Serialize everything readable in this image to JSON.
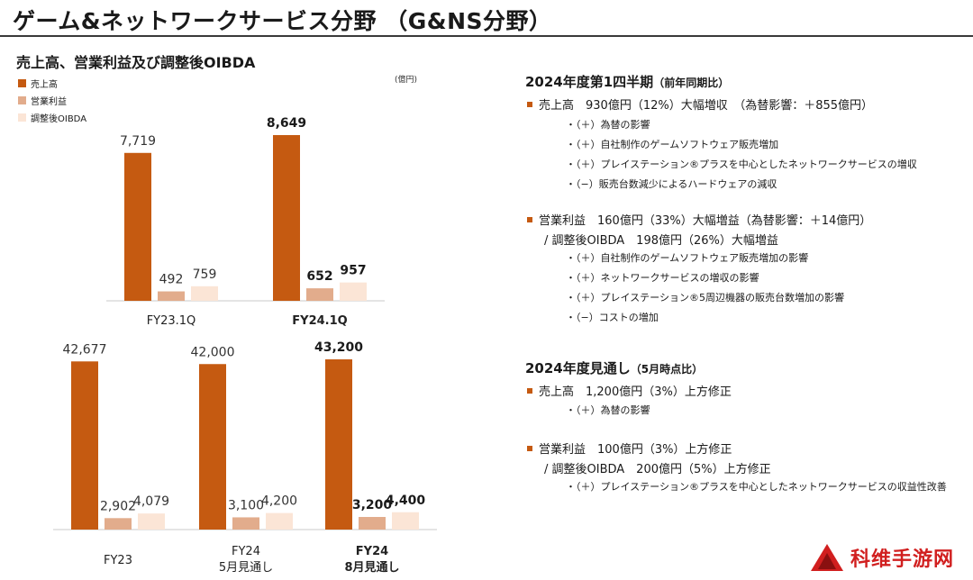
{
  "page": {
    "title": "ゲーム&ネットワークサービス分野 （G&NS分野）",
    "subtitle": "売上高、営業利益及び調整後OIBDA",
    "unit": "(億円)"
  },
  "colors": {
    "sales": "#c55a11",
    "op": "#e2ac8c",
    "oibda": "#fbe5d6",
    "accent": "#c55a11"
  },
  "legend": [
    {
      "label": "売上高",
      "color": "#c55a11"
    },
    {
      "label": "営業利益",
      "color": "#e2ac8c"
    },
    {
      "label": "調整後OIBDA",
      "color": "#fbe5d6"
    }
  ],
  "chart_data": [
    {
      "type": "bar",
      "categories": [
        "FY23.1Q",
        "FY24.1Q"
      ],
      "series": [
        {
          "name": "売上高",
          "values": [
            7719,
            8649
          ]
        },
        {
          "name": "営業利益",
          "values": [
            492,
            652
          ]
        },
        {
          "name": "調整後OIBDA",
          "values": [
            759,
            957
          ]
        }
      ],
      "value_labels": [
        [
          "7,719",
          "492",
          "759"
        ],
        [
          "8,649",
          "652",
          "957"
        ]
      ],
      "bold_category": "FY24.1Q",
      "ylim": [
        0,
        10000
      ]
    },
    {
      "type": "bar",
      "categories": [
        "FY23",
        "FY24 5月見通し",
        "FY24 8月見通し"
      ],
      "category_lines": [
        [
          "FY23"
        ],
        [
          "FY24",
          "5月見通し"
        ],
        [
          "FY24",
          "8月見通し"
        ]
      ],
      "series": [
        {
          "name": "売上高",
          "values": [
            42677,
            42000,
            43200
          ]
        },
        {
          "name": "営業利益",
          "values": [
            2902,
            3100,
            3200
          ]
        },
        {
          "name": "調整後OIBDA",
          "values": [
            4079,
            4200,
            4400
          ]
        }
      ],
      "value_labels": [
        [
          "42,677",
          "2,902",
          "4,079"
        ],
        [
          "42,000",
          "3,100",
          "4,200"
        ],
        [
          "43,200",
          "3,200",
          "4,400"
        ]
      ],
      "bold_category": "FY24 8月見通し",
      "ylim": [
        0,
        45000
      ]
    }
  ],
  "q1": {
    "heading": "2024年度第1四半期",
    "heading_note": "（前年同期比）",
    "sales_line": "売上高　930億円（12%）大幅増収　（為替影響：＋855億円）",
    "sales_items": [
      "・（＋）為替の影響",
      "・（＋）自社制作のゲームソフトウェア販売増加",
      "・（＋）プレイステーション®プラスを中心としたネットワークサービスの増収",
      "・（−）販売台数減少によるハードウェアの減収"
    ],
    "op_line": "営業利益　160億円（33%）大幅増益（為替影響：＋14億円）",
    "oibda_line": "/ 調整後OIBDA　198億円（26%）大幅増益",
    "op_items": [
      "・（＋）自社制作のゲームソフトウェア販売増加の影響",
      "・（＋）ネットワークサービスの増収の影響",
      "・（＋）プレイステーション®5周辺機器の販売台数増加の影響",
      "・（−）コストの増加"
    ]
  },
  "fy": {
    "heading": "2024年度見通し",
    "heading_note": "（5月時点比）",
    "sales_line": "売上高　1,200億円（3%）上方修正",
    "sales_items": [
      "・（＋）為替の影響"
    ],
    "op_line": "営業利益　100億円（3%）上方修正",
    "oibda_line": "/ 調整後OIBDA　200億円（5%）上方修正",
    "op_items": [
      "・（＋）プレイステーション®プラスを中心としたネットワークサービスの収益性改善"
    ]
  },
  "watermark": {
    "text": "科维手游网",
    "logo": "red-triangle-logo"
  }
}
